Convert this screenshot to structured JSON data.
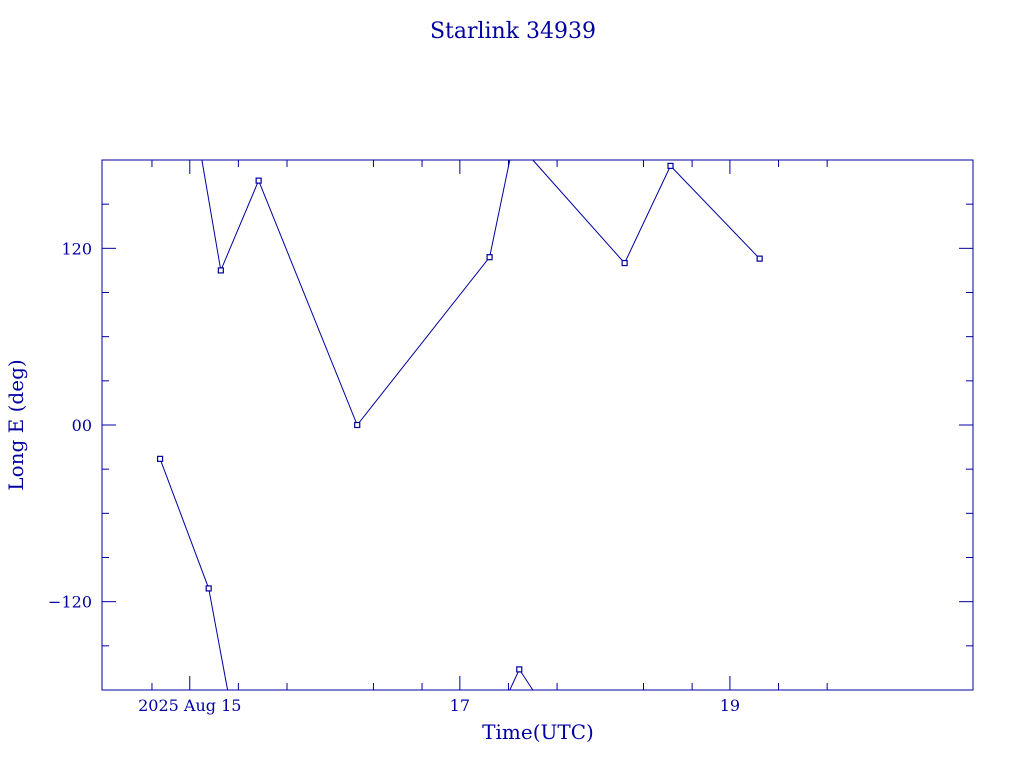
{
  "chart_data": {
    "type": "line",
    "title": "Starlink 34939",
    "xlabel": "Time(UTC)",
    "ylabel": "Long E (deg)",
    "x_unit": "days",
    "xlim": [
      13.35,
      19.8
    ],
    "ylim": [
      -180,
      180
    ],
    "x_ticks": [
      {
        "value": 14.0,
        "label": "2025 Aug 15"
      },
      {
        "value": 16.0,
        "label": "17"
      },
      {
        "value": 18.0,
        "label": "19"
      }
    ],
    "x_minor_ticks": [
      13.72,
      14.36,
      14.72,
      15.36,
      15.72,
      16.36,
      16.72,
      17.36,
      17.72,
      18.36,
      18.72
    ],
    "y_ticks": [
      {
        "value": 120,
        "label": "120"
      },
      {
        "value": 0,
        "label": "00"
      },
      {
        "value": -120,
        "label": "-120"
      }
    ],
    "y_minor_ticks": [
      150,
      90,
      60,
      30,
      -30,
      -60,
      -90,
      -150
    ],
    "color": "#0000a0",
    "points": [
      {
        "x": 13.78,
        "y": -23
      },
      {
        "x": 14.14,
        "y": -111
      },
      {
        "x": 14.28,
        "y": -180
      },
      {
        "x": 14.09,
        "y": 180
      },
      {
        "x": 14.23,
        "y": 105
      },
      {
        "x": 14.51,
        "y": 166
      },
      {
        "x": 15.24,
        "y": 0
      },
      {
        "x": 16.22,
        "y": 114
      },
      {
        "x": 16.37,
        "y": 180
      },
      {
        "x": 16.37,
        "y": -180
      },
      {
        "x": 16.44,
        "y": -166
      },
      {
        "x": 16.54,
        "y": -180
      },
      {
        "x": 16.54,
        "y": 180
      },
      {
        "x": 17.22,
        "y": 110
      },
      {
        "x": 17.56,
        "y": 176
      },
      {
        "x": 18.22,
        "y": 113
      }
    ],
    "segments": [
      [
        [
          13.78,
          -23
        ],
        [
          14.14,
          -111
        ],
        [
          14.28,
          -180
        ]
      ],
      [
        [
          14.09,
          180
        ],
        [
          14.23,
          105
        ],
        [
          14.51,
          166
        ],
        [
          15.24,
          0
        ],
        [
          16.22,
          114
        ],
        [
          16.37,
          180
        ]
      ],
      [
        [
          16.37,
          -180
        ],
        [
          16.44,
          -166
        ],
        [
          16.54,
          -180
        ]
      ],
      [
        [
          16.54,
          180
        ],
        [
          17.22,
          110
        ],
        [
          17.56,
          176
        ],
        [
          18.22,
          113
        ]
      ]
    ],
    "grid": false,
    "legend": "none"
  }
}
